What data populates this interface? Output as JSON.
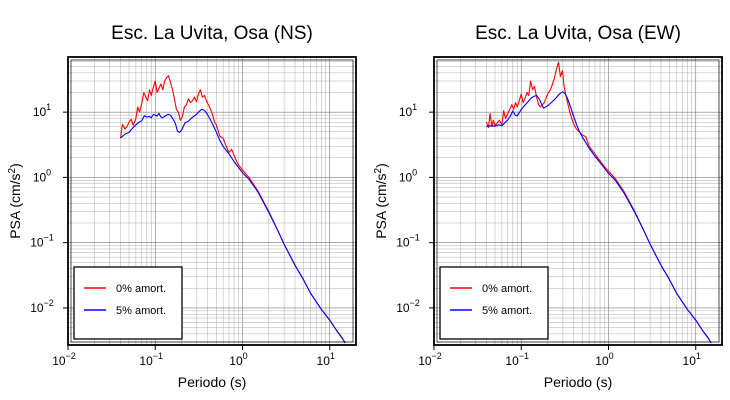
{
  "chart_data": [
    {
      "type": "line",
      "title": "Esc. La Uvita, Osa (NS)",
      "xlabel": "Periodo (s)",
      "ylabel": "PSA (cm/s²)",
      "ylabel_base": "PSA (cm/s",
      "ylabel_sup": "2",
      "ylabel_end": ")",
      "xscale": "log",
      "yscale": "log",
      "xlim": [
        0.01,
        20
      ],
      "ylim": [
        0.0027,
        70
      ],
      "grid": true,
      "legend_position": "lower-left",
      "x_ticks": [
        {
          "base": "10",
          "exp": "−2",
          "value": 0.01
        },
        {
          "base": "10",
          "exp": "−1",
          "value": 0.1
        },
        {
          "base": "10",
          "exp": "0",
          "value": 1
        },
        {
          "base": "10",
          "exp": "1",
          "value": 10
        }
      ],
      "y_ticks": [
        {
          "base": "10",
          "exp": "−2",
          "value": 0.01
        },
        {
          "base": "10",
          "exp": "−1",
          "value": 0.1
        },
        {
          "base": "10",
          "exp": "0",
          "value": 1
        },
        {
          "base": "10",
          "exp": "1",
          "value": 10
        }
      ],
      "series": [
        {
          "name": "0% amort.",
          "color": "#ff0000",
          "x": [
            0.04,
            0.042,
            0.045,
            0.048,
            0.05,
            0.053,
            0.056,
            0.06,
            0.063,
            0.066,
            0.07,
            0.074,
            0.078,
            0.082,
            0.086,
            0.09,
            0.095,
            0.1,
            0.105,
            0.11,
            0.116,
            0.122,
            0.128,
            0.135,
            0.142,
            0.15,
            0.158,
            0.166,
            0.175,
            0.184,
            0.194,
            0.205,
            0.216,
            0.228,
            0.24,
            0.253,
            0.267,
            0.281,
            0.296,
            0.312,
            0.329,
            0.347,
            0.366,
            0.386,
            0.407,
            0.43,
            0.45,
            0.48,
            0.5,
            0.55,
            0.6,
            0.65,
            0.7,
            0.75,
            0.8,
            0.85,
            0.9,
            1.0,
            1.2,
            1.5,
            2.0,
            2.5,
            3.0,
            4.0,
            5.0,
            6.0,
            8.0,
            10.0,
            12.0,
            14.0,
            15.0
          ],
          "y": [
            4.0,
            6.5,
            5.5,
            6.2,
            7.0,
            7.8,
            6.3,
            8.0,
            12.0,
            10.0,
            13.5,
            20.0,
            17.0,
            15.0,
            22.0,
            18.0,
            24.0,
            30.0,
            20.0,
            23.0,
            27.0,
            22.0,
            30.0,
            34.0,
            36.0,
            28.0,
            22.0,
            16.0,
            11.0,
            10.0,
            7.5,
            8.5,
            12.0,
            13.0,
            16.0,
            14.0,
            15.0,
            17.0,
            14.5,
            19.0,
            22.0,
            17.0,
            18.0,
            15.0,
            13.0,
            11.0,
            9.5,
            7.0,
            6.5,
            4.3,
            4.0,
            3.0,
            2.4,
            2.7,
            2.2,
            1.8,
            1.55,
            1.3,
            0.98,
            0.62,
            0.3,
            0.16,
            0.095,
            0.045,
            0.027,
            0.017,
            0.0095,
            0.0065,
            0.0045,
            0.0034,
            0.0029
          ]
        },
        {
          "name": "5% amort.",
          "color": "#0000ff",
          "x": [
            0.04,
            0.045,
            0.05,
            0.055,
            0.06,
            0.065,
            0.07,
            0.075,
            0.08,
            0.085,
            0.09,
            0.095,
            0.1,
            0.105,
            0.11,
            0.115,
            0.12,
            0.13,
            0.14,
            0.15,
            0.16,
            0.17,
            0.18,
            0.19,
            0.2,
            0.21,
            0.22,
            0.24,
            0.26,
            0.28,
            0.3,
            0.32,
            0.34,
            0.36,
            0.38,
            0.4,
            0.43,
            0.46,
            0.5,
            0.55,
            0.6,
            0.7,
            0.8,
            0.9,
            1.0,
            1.2,
            1.5,
            2.0,
            2.5,
            3.0,
            4.0,
            5.0,
            6.0,
            8.0,
            10.0,
            12.0,
            14.0,
            15.0
          ],
          "y": [
            4.0,
            4.6,
            4.9,
            5.7,
            6.4,
            7.0,
            7.4,
            8.8,
            8.4,
            8.6,
            8.2,
            9.2,
            9.0,
            8.7,
            9.6,
            8.6,
            8.2,
            8.7,
            9.3,
            8.9,
            7.8,
            6.7,
            5.1,
            4.9,
            5.3,
            6.1,
            6.9,
            7.3,
            8.1,
            8.7,
            9.4,
            10.3,
            11.0,
            10.8,
            10.0,
            9.0,
            7.6,
            6.3,
            5.0,
            3.7,
            3.0,
            2.3,
            1.75,
            1.42,
            1.18,
            0.92,
            0.6,
            0.29,
            0.16,
            0.095,
            0.045,
            0.027,
            0.017,
            0.0095,
            0.0065,
            0.0045,
            0.0034,
            0.0029
          ]
        }
      ]
    },
    {
      "type": "line",
      "title": "Esc. La Uvita, Osa (EW)",
      "xlabel": "Periodo (s)",
      "ylabel": "PSA (cm/s²)",
      "ylabel_base": "PSA (cm/s",
      "ylabel_sup": "2",
      "ylabel_end": ")",
      "xscale": "log",
      "yscale": "log",
      "xlim": [
        0.01,
        20
      ],
      "ylim": [
        0.0027,
        70
      ],
      "grid": true,
      "legend_position": "lower-left",
      "x_ticks": [
        {
          "base": "10",
          "exp": "−2",
          "value": 0.01
        },
        {
          "base": "10",
          "exp": "−1",
          "value": 0.1
        },
        {
          "base": "10",
          "exp": "0",
          "value": 1
        },
        {
          "base": "10",
          "exp": "1",
          "value": 10
        }
      ],
      "y_ticks": [
        {
          "base": "10",
          "exp": "−2",
          "value": 0.01
        },
        {
          "base": "10",
          "exp": "−1",
          "value": 0.1
        },
        {
          "base": "10",
          "exp": "0",
          "value": 1
        },
        {
          "base": "10",
          "exp": "1",
          "value": 10
        }
      ],
      "series": [
        {
          "name": "0% amort.",
          "color": "#ff0000",
          "x": [
            0.04,
            0.042,
            0.044,
            0.046,
            0.048,
            0.05,
            0.053,
            0.056,
            0.06,
            0.063,
            0.066,
            0.07,
            0.074,
            0.078,
            0.082,
            0.086,
            0.09,
            0.095,
            0.1,
            0.105,
            0.11,
            0.116,
            0.122,
            0.128,
            0.135,
            0.142,
            0.15,
            0.158,
            0.166,
            0.175,
            0.184,
            0.194,
            0.205,
            0.216,
            0.228,
            0.24,
            0.253,
            0.267,
            0.281,
            0.296,
            0.31,
            0.325,
            0.34,
            0.36,
            0.38,
            0.4,
            0.43,
            0.46,
            0.5,
            0.55,
            0.6,
            0.65,
            0.7,
            0.75,
            0.8,
            0.9,
            1.0,
            1.2,
            1.5,
            2.0,
            2.5,
            3.0,
            4.0,
            5.0,
            6.0,
            8.0,
            10.0,
            12.0,
            14.0,
            15.0
          ],
          "y": [
            7.0,
            5.8,
            9.5,
            6.0,
            7.5,
            6.3,
            6.8,
            7.5,
            6.5,
            10.5,
            8.0,
            9.5,
            11.0,
            13.0,
            11.0,
            14.0,
            12.0,
            15.0,
            19.0,
            14.0,
            16.0,
            20.0,
            18.0,
            30.0,
            22.0,
            25.0,
            17.0,
            13.0,
            12.0,
            13.0,
            14.0,
            17.0,
            20.0,
            22.0,
            27.0,
            33.0,
            45.0,
            58.0,
            35.0,
            43.0,
            25.0,
            18.0,
            14.0,
            10.0,
            8.0,
            6.5,
            5.5,
            5.0,
            4.5,
            4.2,
            3.0,
            2.6,
            2.3,
            2.0,
            1.8,
            1.45,
            1.25,
            0.95,
            0.61,
            0.3,
            0.16,
            0.095,
            0.045,
            0.027,
            0.017,
            0.0095,
            0.0065,
            0.0045,
            0.0034,
            0.0029
          ]
        },
        {
          "name": "5% amort.",
          "color": "#0000ff",
          "x": [
            0.04,
            0.045,
            0.05,
            0.055,
            0.06,
            0.065,
            0.07,
            0.075,
            0.08,
            0.085,
            0.09,
            0.095,
            0.1,
            0.11,
            0.12,
            0.13,
            0.14,
            0.15,
            0.16,
            0.17,
            0.18,
            0.19,
            0.2,
            0.22,
            0.24,
            0.26,
            0.28,
            0.3,
            0.32,
            0.34,
            0.36,
            0.38,
            0.4,
            0.43,
            0.46,
            0.5,
            0.55,
            0.6,
            0.7,
            0.8,
            0.9,
            1.0,
            1.2,
            1.5,
            2.0,
            2.5,
            3.0,
            4.0,
            5.0,
            6.0,
            8.0,
            10.0,
            12.0,
            14.0,
            15.0
          ],
          "y": [
            6.0,
            6.2,
            6.1,
            6.4,
            6.2,
            6.9,
            7.6,
            8.6,
            10.5,
            9.0,
            8.8,
            9.8,
            11.0,
            12.8,
            14.5,
            16.5,
            17.5,
            18.0,
            16.0,
            13.5,
            11.5,
            12.0,
            12.5,
            14.0,
            15.5,
            17.5,
            19.5,
            20.5,
            19.0,
            16.0,
            13.0,
            10.5,
            8.5,
            6.5,
            5.2,
            4.2,
            3.4,
            2.8,
            2.1,
            1.7,
            1.38,
            1.15,
            0.9,
            0.58,
            0.29,
            0.16,
            0.095,
            0.045,
            0.027,
            0.017,
            0.0095,
            0.0065,
            0.0045,
            0.0034,
            0.0029
          ]
        }
      ]
    }
  ]
}
